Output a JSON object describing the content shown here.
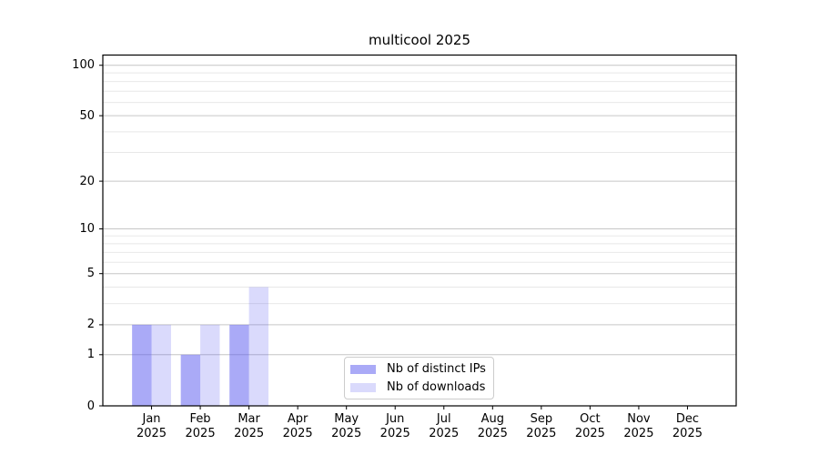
{
  "title": "multicool 2025",
  "chart_data": {
    "type": "bar",
    "title": "multicool 2025",
    "categories": [
      "Jan 2025",
      "Feb 2025",
      "Mar 2025",
      "Apr 2025",
      "May 2025",
      "Jun 2025",
      "Jul 2025",
      "Aug 2025",
      "Sep 2025",
      "Oct 2025",
      "Nov 2025",
      "Dec 2025"
    ],
    "series": [
      {
        "name": "Nb of distinct IPs",
        "color": "rgba(85,85,240,0.5)",
        "values": [
          2,
          1,
          2,
          0,
          0,
          0,
          0,
          0,
          0,
          0,
          0,
          0
        ]
      },
      {
        "name": "Nb of downloads",
        "color": "rgba(85,85,240,0.22)",
        "values": [
          2,
          2,
          4,
          0,
          0,
          0,
          0,
          0,
          0,
          0,
          0,
          0
        ]
      }
    ],
    "xlabel": "",
    "ylabel": "",
    "yscale": "log10(1+y)",
    "ylim": [
      0,
      115
    ],
    "y_major_ticks": [
      0,
      1,
      2,
      5,
      10,
      20,
      50,
      100
    ],
    "y_minor_ticks": [
      3,
      4,
      6,
      7,
      8,
      9,
      30,
      40,
      60,
      70,
      80,
      90
    ],
    "grid": "horizontal",
    "legend_position": "lower center"
  },
  "legend": {
    "items": [
      {
        "label": "Nb of distinct IPs",
        "color": "rgba(85,85,240,0.5)"
      },
      {
        "label": "Nb of downloads",
        "color": "rgba(85,85,240,0.22)"
      }
    ]
  },
  "colors": {
    "background": "#ffffff",
    "bar_dark": "rgba(85,85,240,0.5)",
    "bar_light": "rgba(85,85,240,0.22)",
    "major_grid": "#c6c6c6",
    "minor_grid": "#e8e8e8",
    "axis": "#000000",
    "text": "#000000",
    "legend_border": "#cccccc"
  }
}
